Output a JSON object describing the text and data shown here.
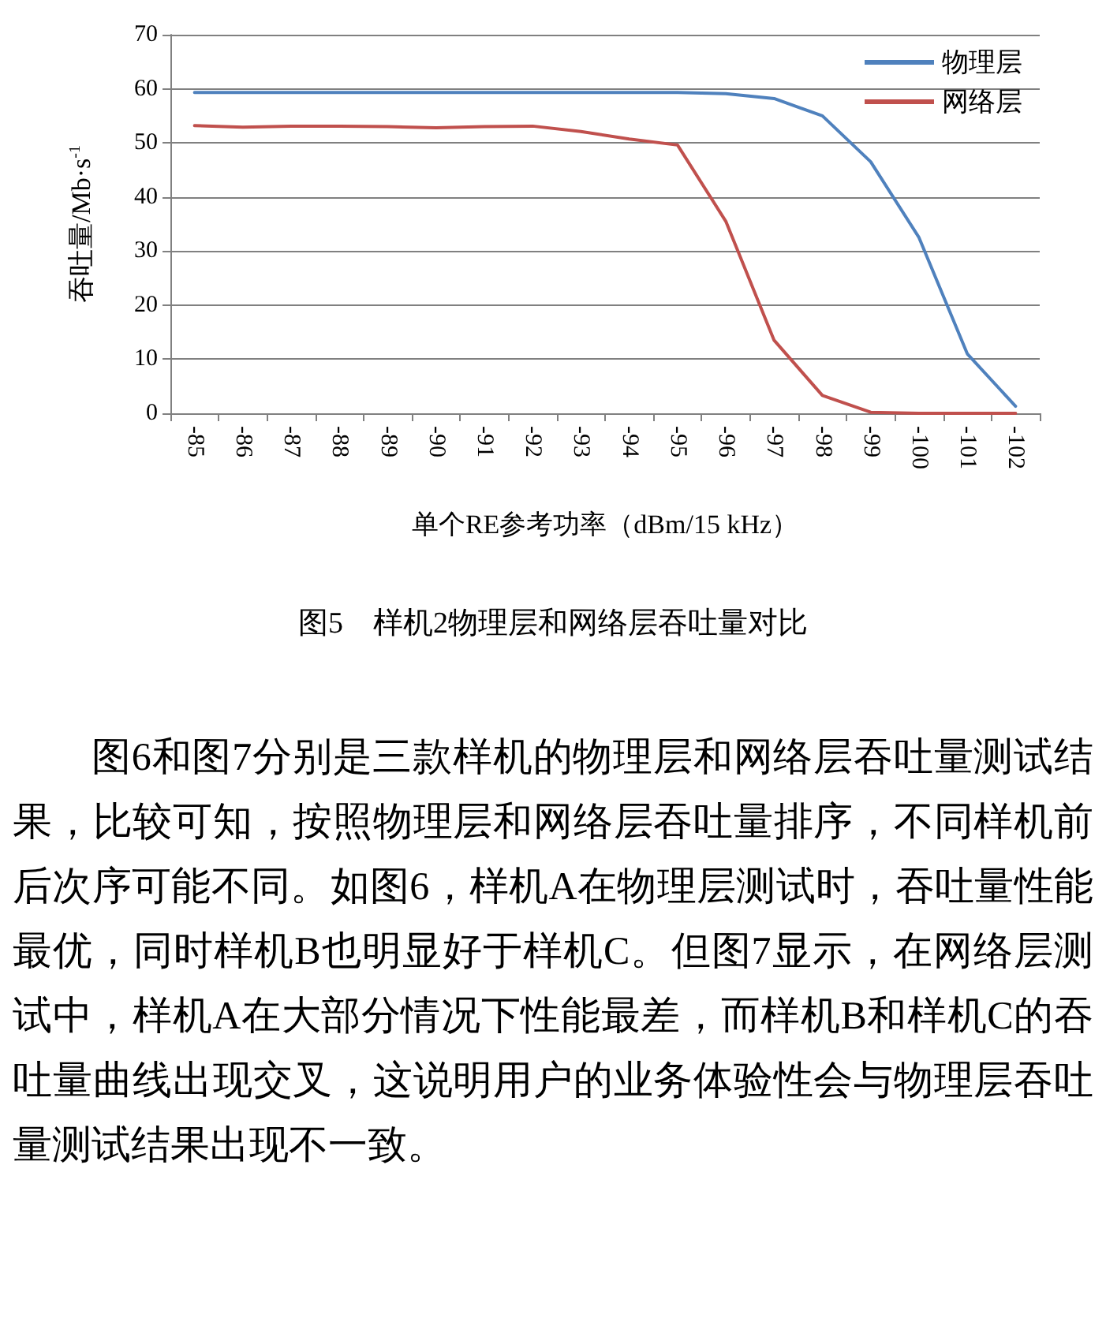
{
  "chart_data": {
    "type": "line",
    "title": "图5　样机2物理层和网络层吞吐量对比",
    "xlabel": "单个RE参考功率（dBm/15 kHz）",
    "ylabel": "吞吐量/Mb·s$^{-1}$",
    "categories": [
      "-85",
      "-86",
      "-87",
      "-88",
      "-89",
      "-90",
      "-91",
      "-92",
      "-93",
      "-94",
      "-95",
      "-96",
      "-97",
      "-98",
      "-99",
      "-100",
      "-101",
      "-102"
    ],
    "series": [
      {
        "name": "物理层",
        "color": "#4f81bd",
        "values": [
          59.3,
          59.3,
          59.3,
          59.3,
          59.3,
          59.3,
          59.3,
          59.3,
          59.3,
          59.3,
          59.3,
          59.1,
          58.2,
          55,
          46.5,
          32.5,
          11,
          1.3
        ]
      },
      {
        "name": "网络层",
        "color": "#c0504d",
        "values": [
          53.2,
          52.9,
          53.1,
          53.1,
          53,
          52.8,
          53,
          53.1,
          52.1,
          50.7,
          49.6,
          35.5,
          13.5,
          3.3,
          0.2,
          0,
          0,
          0
        ]
      }
    ],
    "ylim": [
      0,
      70
    ],
    "yticks": [
      0,
      10,
      20,
      30,
      40,
      50,
      60,
      70
    ],
    "grid": "y",
    "legend": "top right",
    "marker": "none",
    "line_style": "solid",
    "annotations": [
      "图6和图7分别是三款样机的物理层和网络层吞吐量测试结果，比较可知，按照物理层和网络层吞吐量排序，不同样机前后次序可能不同。如图6，样机A在物理层测试时，吞吐量性能最优，同时样机B也明显好于样机C。但图7显示，在网络层测试中，样机A在大部分情况下性能最差，而样机B和样机C的吞吐量曲线出现交叉，这说明用户的业务体验性会与物理层吞吐量测试结果出现不一致。"
    ]
  }
}
